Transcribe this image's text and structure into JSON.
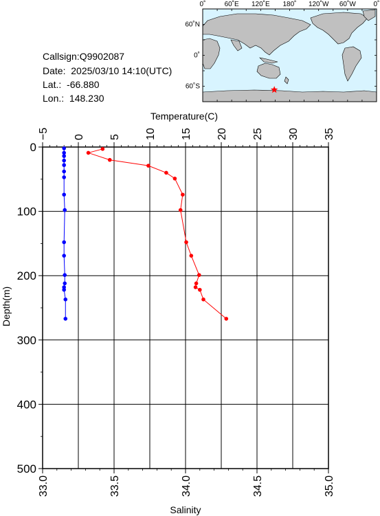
{
  "station": {
    "callsign_label": "Callsign:",
    "callsign": "Q9902087",
    "date_label": "Date:",
    "date": "2025/03/10 14:10(UTC)",
    "lat_label": "Lat.:",
    "lat": "-66.880",
    "lon_label": "Lon.:",
    "lon": "148.230"
  },
  "map": {
    "top_labels": [
      "0˚",
      "60˚E",
      "120˚E",
      "180˚",
      "120˚W",
      "60˚W",
      "0˚"
    ],
    "lat_labels": [
      "60˚N",
      "0˚",
      "60˚S"
    ],
    "marker": "star",
    "marker_color": "#ff0000",
    "ocean_color": "#d8f4ff",
    "land_color": "#c0c0c0"
  },
  "chart_data": {
    "type": "scatter",
    "ylabel": "Depth(m)",
    "ylim": [
      0,
      500
    ],
    "yticks": [
      0,
      100,
      200,
      300,
      400,
      500
    ],
    "y_inverted": true,
    "grid": true,
    "top_axis": {
      "label": "Temperature(C)",
      "lim": [
        -5,
        35
      ],
      "ticks": [
        -5,
        0,
        5,
        10,
        15,
        20,
        25,
        30,
        35
      ],
      "tick_labels": [
        "−5",
        "0",
        "5",
        "10",
        "15",
        "20",
        "25",
        "30",
        "35"
      ]
    },
    "bottom_axis": {
      "label": "Salinity",
      "lim": [
        33.0,
        35.0
      ],
      "ticks": [
        33.0,
        33.5,
        34.0,
        34.5,
        35.0
      ],
      "tick_labels": [
        "33.0",
        "33.5",
        "34.0",
        "34.5",
        "35.0"
      ]
    },
    "series": [
      {
        "color": "#ff0000",
        "axis": "top",
        "points": [
          [
            3.4,
            3
          ],
          [
            1.4,
            9
          ],
          [
            4.4,
            20
          ],
          [
            9.8,
            29
          ],
          [
            12.3,
            40
          ],
          [
            13.5,
            49
          ],
          [
            14.6,
            74
          ],
          [
            14.3,
            98
          ],
          [
            15.1,
            148
          ],
          [
            15.8,
            169
          ],
          [
            16.9,
            199
          ],
          [
            16.5,
            212
          ],
          [
            16.4,
            218
          ],
          [
            17.0,
            222
          ],
          [
            17.5,
            237
          ],
          [
            20.7,
            267
          ]
        ]
      },
      {
        "color": "#0000ff",
        "axis": "bottom",
        "points": [
          [
            33.15,
            2
          ],
          [
            33.15,
            9
          ],
          [
            33.15,
            14
          ],
          [
            33.15,
            21
          ],
          [
            33.15,
            28
          ],
          [
            33.15,
            38
          ],
          [
            33.15,
            47
          ],
          [
            33.15,
            74
          ],
          [
            33.155,
            98
          ],
          [
            33.15,
            148
          ],
          [
            33.15,
            169
          ],
          [
            33.155,
            199
          ],
          [
            33.155,
            212
          ],
          [
            33.15,
            218
          ],
          [
            33.15,
            222
          ],
          [
            33.16,
            237
          ],
          [
            33.16,
            267
          ]
        ]
      }
    ]
  }
}
